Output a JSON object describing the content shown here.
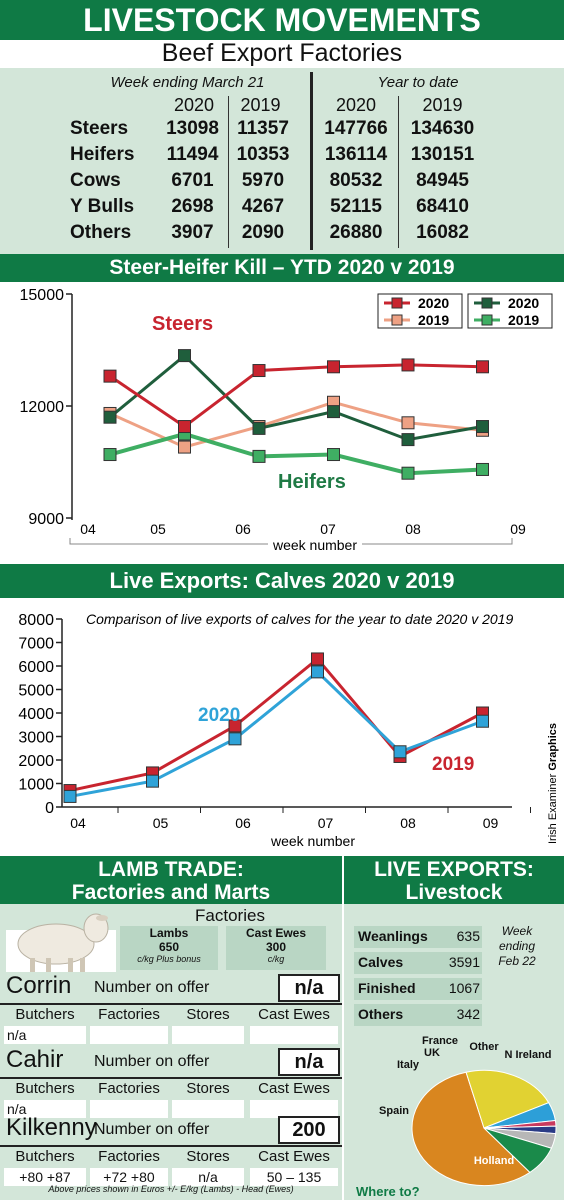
{
  "header": {
    "title": "LIVESTOCK MOVEMENTS",
    "subtitle": "Beef Export Factories"
  },
  "beef_table": {
    "week_label": "Week ending March 21",
    "ytd_label": "Year to date",
    "years": [
      "2020",
      "2019",
      "2020",
      "2019"
    ],
    "rows": [
      {
        "label": "Steers",
        "values": [
          "13098",
          "11357",
          "147766",
          "134630"
        ]
      },
      {
        "label": "Heifers",
        "values": [
          "11494",
          "10353",
          "136114",
          "130151"
        ]
      },
      {
        "label": "Cows",
        "values": [
          "6701",
          "5970",
          "80532",
          "84945"
        ]
      },
      {
        "label": "Y Bulls",
        "values": [
          "2698",
          "4267",
          "52115",
          "68410"
        ]
      },
      {
        "label": "Others",
        "values": [
          "3907",
          "2090",
          "26880",
          "16082"
        ]
      }
    ]
  },
  "chart_data": [
    {
      "type": "line",
      "title": "Steer-Heifer Kill – YTD 2020 v 2019",
      "xlabel": "week number",
      "ylabel": "",
      "categories": [
        "04",
        "05",
        "06",
        "07",
        "08",
        "09"
      ],
      "ylim": [
        9000,
        15000
      ],
      "yticks": [
        "15000",
        "12000",
        "9000"
      ],
      "series": [
        {
          "name": "2020",
          "group": "Steers",
          "color": "#c8242f",
          "values": [
            12800,
            11450,
            12950,
            13050,
            13100,
            13050
          ]
        },
        {
          "name": "2019",
          "group": "Steers",
          "color": "#eea184",
          "values": [
            11800,
            10900,
            11450,
            12100,
            11550,
            11350
          ]
        },
        {
          "name": "2020",
          "group": "Heifers",
          "color": "#1f5e3c",
          "values": [
            11700,
            13350,
            11400,
            11850,
            11100,
            11450
          ]
        },
        {
          "name": "2019",
          "group": "Heifers",
          "color": "#3fae63",
          "values": [
            10700,
            11250,
            10650,
            10700,
            10200,
            10300
          ]
        }
      ],
      "annotations": [
        "Steers",
        "Heifers"
      ],
      "legend": "top-right"
    },
    {
      "type": "line",
      "title": "Live Exports: Calves 2020 v 2019",
      "subtitle": "Comparison of live exports of calves for the year to date 2020 v 2019",
      "xlabel": "week number",
      "ylabel": "",
      "categories": [
        "04",
        "05",
        "06",
        "07",
        "08",
        "09"
      ],
      "ylim": [
        0,
        8000
      ],
      "yticks": [
        "8000",
        "7000",
        "6000",
        "5000",
        "4000",
        "3000",
        "2000",
        "1000",
        "0"
      ],
      "series": [
        {
          "name": "2020",
          "color": "#2fa3d8",
          "values": [
            450,
            1100,
            2900,
            5750,
            2350,
            3650
          ]
        },
        {
          "name": "2019",
          "color": "#c8242f",
          "values": [
            700,
            1450,
            3450,
            6300,
            2150,
            4000
          ]
        }
      ],
      "credit": {
        "normal": "Irish Examiner ",
        "bold": "Graphics"
      }
    },
    {
      "type": "pie",
      "title": "Where to?",
      "categories": [
        "Holland",
        "Spain",
        "Italy",
        "UK",
        "France",
        "Other",
        "N Ireland"
      ],
      "values": [
        55,
        21,
        5,
        1.5,
        2,
        4,
        8
      ],
      "colors": [
        "#d9861f",
        "#e1d232",
        "#2d9fd8",
        "#c93a5e",
        "#2a3b86",
        "#b7b7b7",
        "#1a8a4a"
      ]
    }
  ],
  "lamb": {
    "title_line1": "LAMB TRADE:",
    "title_line2": "Factories and Marts",
    "factories_label": "Factories",
    "lambs": {
      "label": "Lambs",
      "value": "650",
      "unit": "c/kg Plus bonus"
    },
    "cast_ewes": {
      "label": "Cast Ewes",
      "value": "300",
      "unit": "c/kg"
    },
    "number_on_offer_label": "Number on offer",
    "col_headers": [
      "Butchers",
      "Factories",
      "Stores",
      "Cast Ewes"
    ],
    "marts": [
      {
        "name": "Corrin",
        "offer": "n/a",
        "prices": [
          "n/a",
          "",
          "",
          ""
        ]
      },
      {
        "name": "Cahir",
        "offer": "n/a",
        "prices": [
          "n/a",
          "",
          "",
          ""
        ]
      },
      {
        "name": "Kilkenny",
        "offer": "200",
        "prices": [
          "+80 +87",
          "+72 +80",
          "n/a",
          "50 – 135"
        ]
      }
    ],
    "footnote": "Above prices shown in Euros +/- E/kg (Lambs) - Head (Ewes)"
  },
  "live_exports": {
    "title_line1": "LIVE EXPORTS:",
    "title_line2": "Livestock",
    "week_note": [
      "Week",
      "ending",
      "Feb 22"
    ],
    "rows": [
      {
        "label": "Weanlings",
        "value": "635"
      },
      {
        "label": "Calves",
        "value": "3591"
      },
      {
        "label": "Finished",
        "value": "1067"
      },
      {
        "label": "Others",
        "value": "342"
      }
    ],
    "where_to": "Where to?"
  }
}
